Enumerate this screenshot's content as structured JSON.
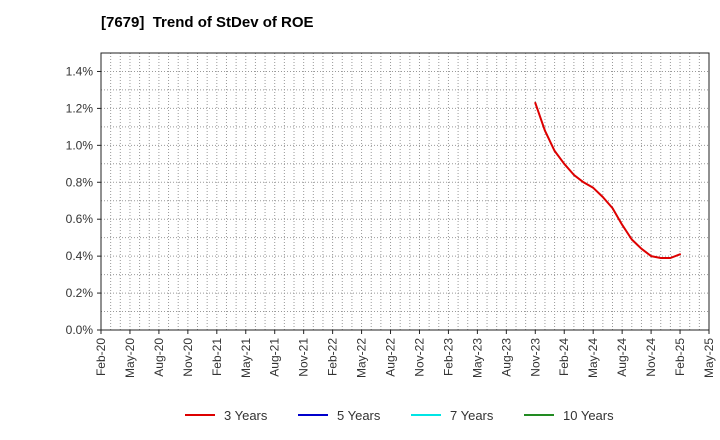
{
  "chart_data": {
    "type": "line",
    "title": "[7679]  Trend of StDev of ROE",
    "xlabel": "",
    "ylabel": "",
    "x_ticks": [
      "Feb-20",
      "May-20",
      "Aug-20",
      "Nov-20",
      "Feb-21",
      "May-21",
      "Aug-21",
      "Nov-21",
      "Feb-22",
      "May-22",
      "Aug-22",
      "Nov-22",
      "Feb-23",
      "May-23",
      "Aug-23",
      "Nov-23",
      "Feb-24",
      "May-24",
      "Aug-24",
      "Nov-24",
      "Feb-25",
      "May-25"
    ],
    "y_ticks": [
      "0.0%",
      "0.2%",
      "0.4%",
      "0.6%",
      "0.8%",
      "1.0%",
      "1.2%",
      "1.4%"
    ],
    "ylim": [
      0,
      1.5
    ],
    "y_unit": "%",
    "grid": true,
    "legend_position": "bottom",
    "series": [
      {
        "name": "3 Years",
        "color": "#dd0000",
        "x": [
          "2023-11",
          "2023-12",
          "2024-01",
          "2024-02",
          "2024-03",
          "2024-04",
          "2024-05",
          "2024-06",
          "2024-07",
          "2024-08",
          "2024-09",
          "2024-10",
          "2024-11",
          "2024-12",
          "2025-01",
          "2025-02"
        ],
        "values": [
          1.23,
          1.08,
          0.97,
          0.9,
          0.84,
          0.8,
          0.77,
          0.72,
          0.66,
          0.57,
          0.49,
          0.44,
          0.4,
          0.39,
          0.39,
          0.41
        ]
      },
      {
        "name": "5 Years",
        "color": "#0000cc",
        "x": [],
        "values": []
      },
      {
        "name": "7 Years",
        "color": "#00e5e5",
        "x": [],
        "values": []
      },
      {
        "name": "10 Years",
        "color": "#228b22",
        "x": [],
        "values": []
      }
    ]
  }
}
